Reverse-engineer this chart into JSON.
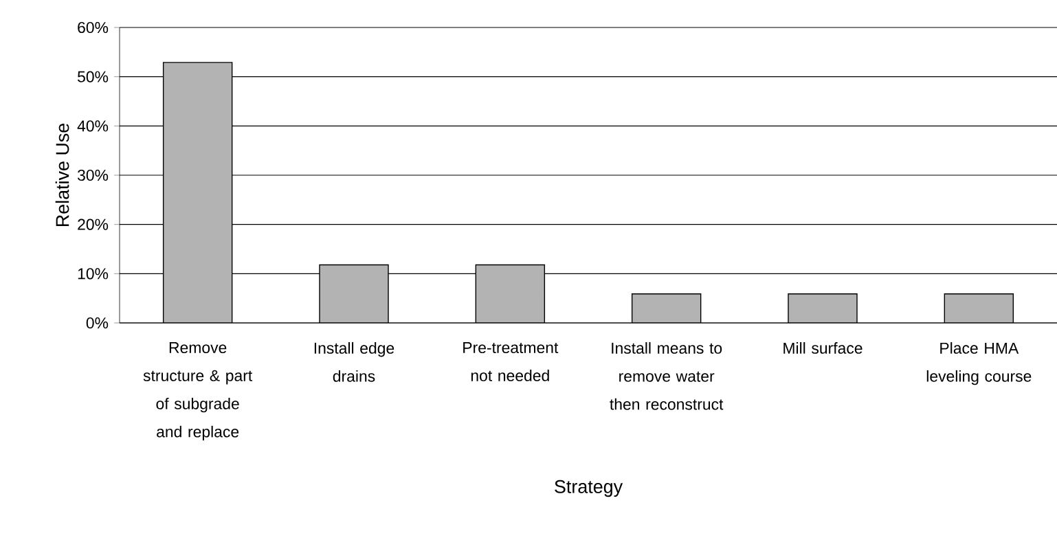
{
  "chart_data": {
    "type": "bar",
    "xlabel": "Strategy",
    "ylabel": "Relative Use",
    "categories": [
      "Remove structure & part of subgrade and replace",
      "Install edge drains",
      "Pre-treatment not needed",
      "Install means to remove water then reconstruct",
      "Mill surface",
      "Place HMA leveling course"
    ],
    "values": [
      52.9,
      11.8,
      11.8,
      5.9,
      5.9,
      5.9
    ],
    "color": "#b3b3b3",
    "ylim": [
      0,
      60
    ],
    "yticks": [
      {
        "value": 0,
        "label": "0%"
      },
      {
        "value": 10,
        "label": "10%"
      },
      {
        "value": 20,
        "label": "20%"
      },
      {
        "value": 30,
        "label": "30%"
      },
      {
        "value": 40,
        "label": "40%"
      },
      {
        "value": 50,
        "label": "50%"
      },
      {
        "value": 60,
        "label": "60%"
      }
    ],
    "grid": "y"
  }
}
